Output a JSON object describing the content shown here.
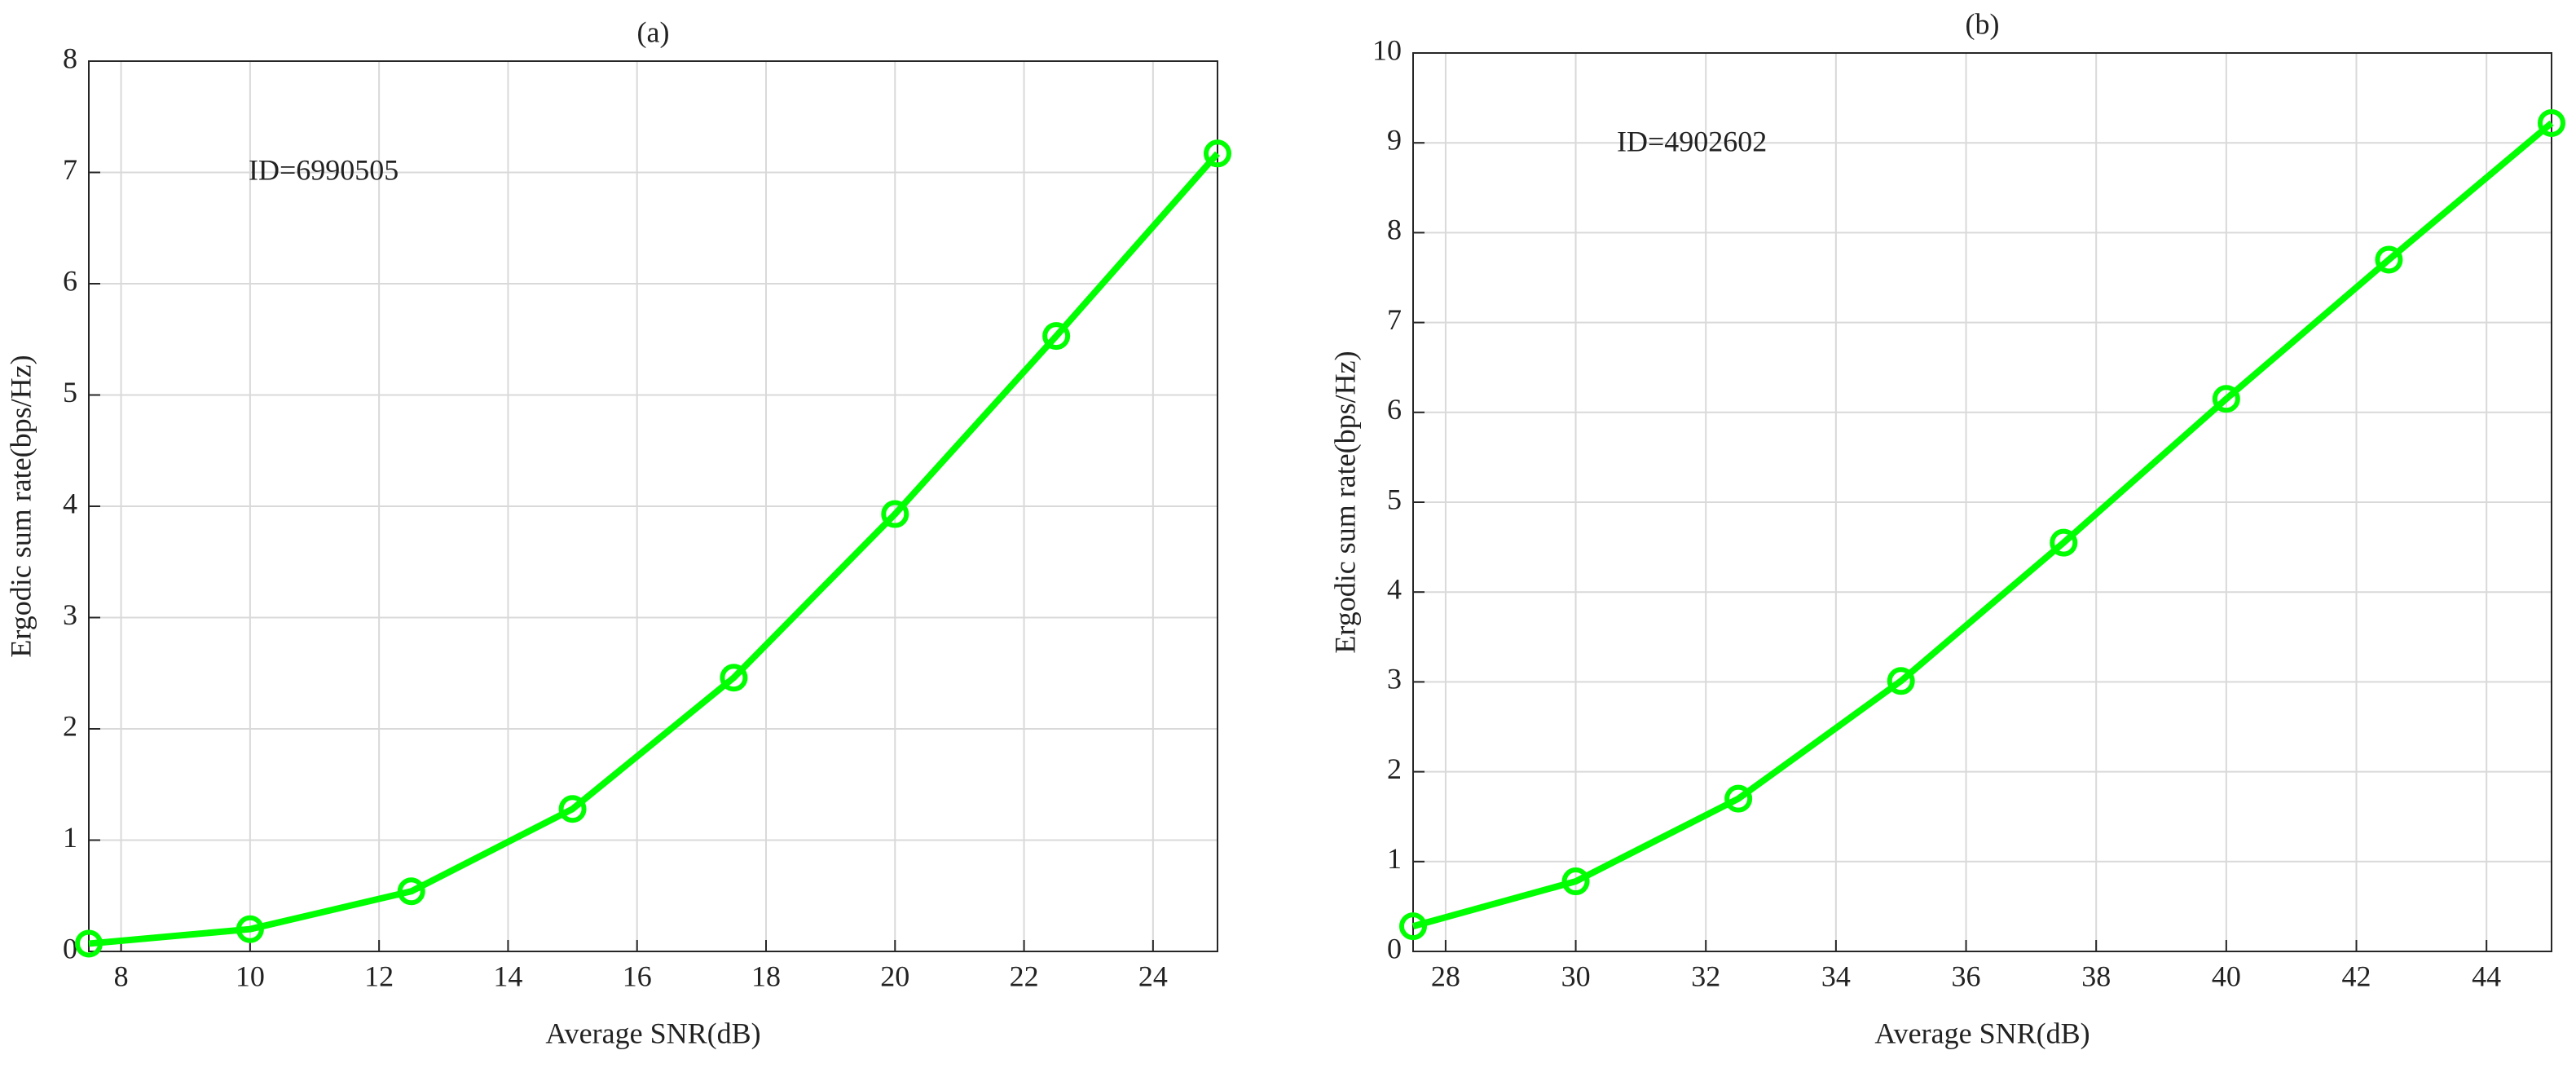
{
  "chart_data": [
    {
      "type": "line",
      "title": "(a)",
      "annotation": "ID=6990505",
      "x_label": "Average SNR(dB)",
      "y_label": "Ergodic sum rate(bps/Hz)",
      "x": [
        7.5,
        10,
        12.5,
        15,
        17.5,
        20,
        22.5,
        25
      ],
      "values": [
        0.07,
        0.2,
        0.54,
        1.28,
        2.46,
        3.93,
        5.53,
        7.17
      ],
      "color": "#00ff00",
      "xlim": [
        7.5,
        25
      ],
      "xticks": [
        8,
        10,
        12,
        14,
        16,
        18,
        20,
        22,
        24
      ],
      "ylim": [
        0,
        8
      ],
      "yticks": [
        0,
        1,
        2,
        3,
        4,
        5,
        6,
        7,
        8
      ],
      "grid": true
    },
    {
      "type": "line",
      "title": "(b)",
      "annotation": "ID=4902602",
      "x_label": "Average SNR(dB)",
      "y_label": "Ergodic sum rate(bps/Hz)",
      "x": [
        27.5,
        30,
        32.5,
        35,
        37.5,
        40,
        42.5,
        45
      ],
      "values": [
        0.28,
        0.78,
        1.7,
        3.01,
        4.55,
        6.15,
        7.7,
        9.22
      ],
      "color": "#00ff00",
      "xlim": [
        27.5,
        45
      ],
      "xticks": [
        28,
        30,
        32,
        34,
        36,
        38,
        40,
        42,
        44
      ],
      "ylim": [
        0,
        10
      ],
      "yticks": [
        0,
        1,
        2,
        3,
        4,
        5,
        6,
        7,
        8,
        9,
        10
      ],
      "grid": true
    }
  ]
}
